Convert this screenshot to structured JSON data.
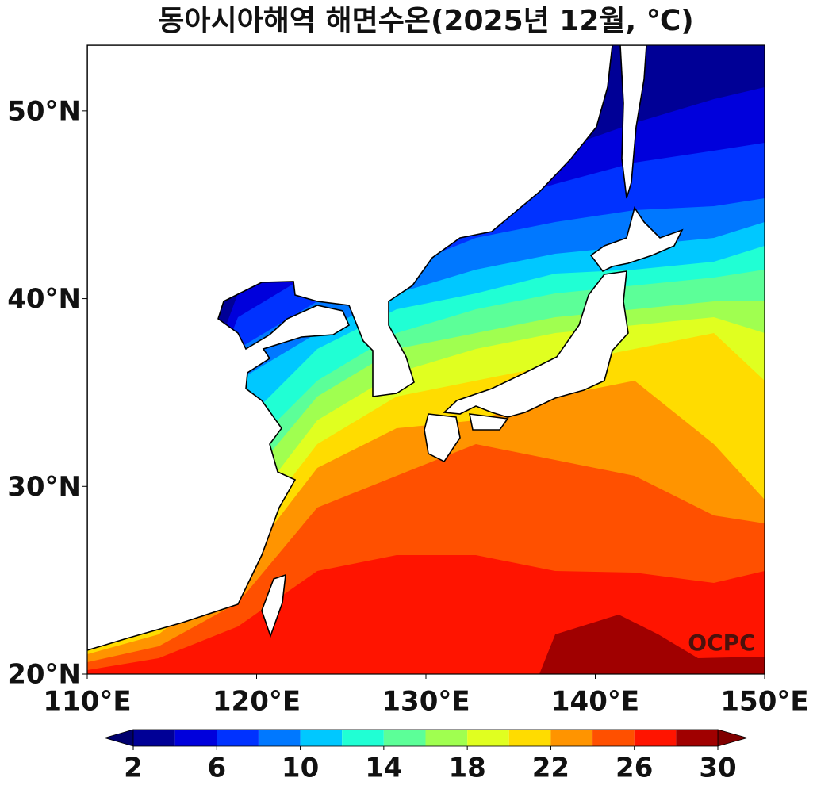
{
  "chart_data": {
    "type": "map",
    "title": "동아시아해역 해면수온(2025년 12월, ℃)",
    "xlim": [
      110,
      150
    ],
    "ylim": [
      20,
      53.5
    ],
    "xticks": [
      {
        "value": 110,
        "label": "110°E"
      },
      {
        "value": 120,
        "label": "120°E"
      },
      {
        "value": 130,
        "label": "130°E"
      },
      {
        "value": 140,
        "label": "140°E"
      },
      {
        "value": 150,
        "label": "150°E"
      }
    ],
    "yticks": [
      {
        "value": 20,
        "label": "20°N"
      },
      {
        "value": 30,
        "label": "30°N"
      },
      {
        "value": 40,
        "label": "40°N"
      },
      {
        "value": 50,
        "label": "50°N"
      }
    ],
    "watermark": "OCPC",
    "colorbar": {
      "levels": [
        2,
        4,
        6,
        8,
        10,
        12,
        14,
        16,
        18,
        20,
        22,
        24,
        26,
        28,
        30
      ],
      "colors": [
        "#000096",
        "#0000dc",
        "#0032ff",
        "#0078ff",
        "#00c8ff",
        "#20ffd4",
        "#5cff98",
        "#a0ff50",
        "#e0ff20",
        "#ffdc00",
        "#ff9400",
        "#ff5000",
        "#ff1400",
        "#a00000"
      ],
      "extend_colors": [
        "#00006e",
        "#800000"
      ],
      "ticks": [
        2,
        6,
        10,
        14,
        18,
        22,
        26,
        30
      ]
    }
  }
}
